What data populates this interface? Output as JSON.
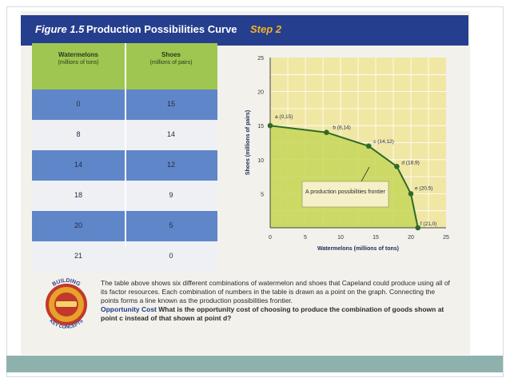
{
  "figure": {
    "label": "Figure 1.5",
    "title": "Production Possibilities Curve",
    "step": "Step 2"
  },
  "table": {
    "headers": [
      {
        "title": "Watermelons",
        "unit": "(millions of tons)"
      },
      {
        "title": "Shoes",
        "unit": "(millions of pairs)"
      }
    ],
    "rows": [
      [
        "0",
        "15"
      ],
      [
        "8",
        "14"
      ],
      [
        "14",
        "12"
      ],
      [
        "18",
        "9"
      ],
      [
        "20",
        "5"
      ],
      [
        "21",
        "0"
      ]
    ]
  },
  "chart_data": {
    "type": "line",
    "xlabel": "Watermelons (millions of tons)",
    "ylabel": "Shoes (millions of pairs)",
    "xlim": [
      0,
      25
    ],
    "ylim": [
      0,
      25
    ],
    "xticks": [
      "0",
      "5",
      "10",
      "15",
      "20",
      "25"
    ],
    "yticks": [
      "5",
      "10",
      "15",
      "20",
      "25"
    ],
    "grid": true,
    "points": [
      {
        "x": 0,
        "y": 15,
        "label": "a (0,15)"
      },
      {
        "x": 8,
        "y": 14,
        "label": "b (8,14)"
      },
      {
        "x": 14,
        "y": 12,
        "label": "c (14,12)"
      },
      {
        "x": 18,
        "y": 9,
        "label": "d (18,9)"
      },
      {
        "x": 20,
        "y": 5,
        "label": "e (20,5)"
      },
      {
        "x": 21,
        "y": 0,
        "label": "f (21,0)"
      }
    ],
    "annotation": "A production possibilities frontier"
  },
  "badge": {
    "top": "BUILDING",
    "bottom": "KEY CONCEPTS"
  },
  "caption": {
    "body": "The table above shows six different combinations of watermelon and shoes that Capeland could produce using all of its factor resources. Each combination of numbers in the table is drawn as a point on the graph. Connecting the points forms a line known as the production possibilities frontier.",
    "question_label": "Opportunity Cost",
    "question": "What is the opportunity cost of choosing to produce the combination of goods shown at point c instead of that shown at point d?"
  },
  "colors": {
    "header_bg": "#263e8e",
    "step": "#f5b324",
    "table_header": "#9fc650",
    "row_blue": "#5f86c8",
    "plot_bg": "#f0e7a4",
    "curve": "#2f6a2a",
    "fill": "#c7d65a"
  }
}
